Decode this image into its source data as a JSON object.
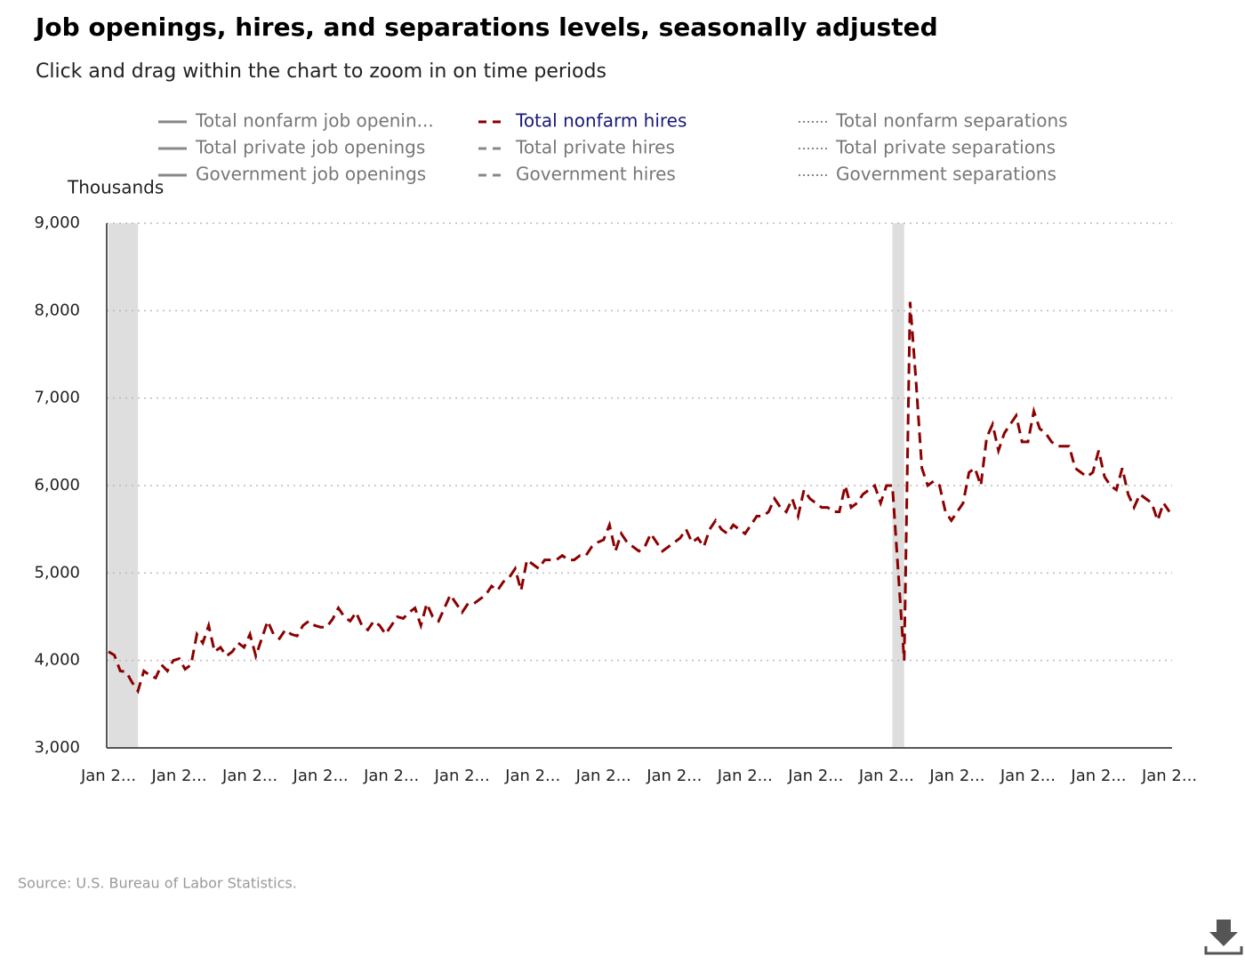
{
  "chart_data": {
    "type": "line",
    "title": "Job openings, hires, and separations levels, seasonally adjusted",
    "subtitle": "Click and drag within the chart to zoom in on time periods",
    "y_label": "Thousands",
    "source": "Source: U.S. Bureau of Labor Statistics.",
    "ylim": [
      3000,
      9000
    ],
    "yticks": [
      {
        "value": 3000,
        "label": "3,000"
      },
      {
        "value": 4000,
        "label": "4,000"
      },
      {
        "value": 5000,
        "label": "5,000"
      },
      {
        "value": 6000,
        "label": "6,000"
      },
      {
        "value": 7000,
        "label": "7,000"
      },
      {
        "value": 8000,
        "label": "8,000"
      },
      {
        "value": 9000,
        "label": "9,000"
      }
    ],
    "grid": true,
    "shaded_ranges": [
      [
        0,
        5
      ],
      [
        133,
        135
      ]
    ],
    "categories": [
      "Jan 2...",
      null,
      null,
      null,
      null,
      null,
      null,
      null,
      null,
      null,
      null,
      null,
      "Jan 2...",
      null,
      null,
      null,
      null,
      null,
      null,
      null,
      null,
      null,
      null,
      null,
      "Jan 2...",
      null,
      null,
      null,
      null,
      null,
      null,
      null,
      null,
      null,
      null,
      null,
      "Jan 2...",
      null,
      null,
      null,
      null,
      null,
      null,
      null,
      null,
      null,
      null,
      null,
      "Jan 2...",
      null,
      null,
      null,
      null,
      null,
      null,
      null,
      null,
      null,
      null,
      null,
      "Jan 2...",
      null,
      null,
      null,
      null,
      null,
      null,
      null,
      null,
      null,
      null,
      null,
      "Jan 2...",
      null,
      null,
      null,
      null,
      null,
      null,
      null,
      null,
      null,
      null,
      null,
      "Jan 2...",
      null,
      null,
      null,
      null,
      null,
      null,
      null,
      null,
      null,
      null,
      null,
      "Jan 2...",
      null,
      null,
      null,
      null,
      null,
      null,
      null,
      null,
      null,
      null,
      null,
      "Jan 2...",
      null,
      null,
      null,
      null,
      null,
      null,
      null,
      null,
      null,
      null,
      null,
      "Jan 2...",
      null,
      null,
      null,
      null,
      null,
      null,
      null,
      null,
      null,
      null,
      null,
      "Jan 2...",
      null,
      null,
      null,
      null,
      null,
      null,
      null,
      null,
      null,
      null,
      null,
      "Jan 2...",
      null,
      null,
      null,
      null,
      null,
      null,
      null,
      null,
      null,
      null,
      null,
      "Jan 2...",
      null,
      null,
      null,
      null,
      null,
      null,
      null,
      null,
      null,
      null,
      null,
      "Jan 2...",
      null,
      null,
      null,
      null,
      null,
      null,
      null,
      null,
      null,
      null,
      null,
      "Jan 2..."
    ],
    "series": [
      {
        "name": "Total nonfarm job openin...",
        "color": "#888888",
        "dash": "solid",
        "visible": false
      },
      {
        "name": "Total nonfarm hires",
        "color": "#8b0000",
        "dash": "dashed",
        "visible": true,
        "values": [
          4100,
          4060,
          3880,
          3870,
          3750,
          3650,
          3880,
          3830,
          3800,
          3950,
          3880,
          4000,
          4020,
          3900,
          3950,
          4300,
          4200,
          4400,
          4100,
          4150,
          4050,
          4100,
          4200,
          4150,
          4300,
          4050,
          4250,
          4450,
          4300,
          4250,
          4350,
          4300,
          4280,
          4400,
          4450,
          4400,
          4380,
          4380,
          4470,
          4600,
          4500,
          4450,
          4550,
          4400,
          4350,
          4450,
          4400,
          4300,
          4400,
          4500,
          4480,
          4550,
          4600,
          4400,
          4650,
          4500,
          4450,
          4600,
          4750,
          4650,
          4550,
          4650,
          4650,
          4700,
          4750,
          4850,
          4800,
          4900,
          4950,
          5050,
          4800,
          5150,
          5100,
          5050,
          5150,
          5150,
          5150,
          5200,
          5150,
          5150,
          5200,
          5200,
          5300,
          5350,
          5380,
          5550,
          5250,
          5450,
          5350,
          5300,
          5250,
          5300,
          5450,
          5350,
          5250,
          5300,
          5350,
          5400,
          5500,
          5350,
          5400,
          5300,
          5500,
          5600,
          5500,
          5450,
          5550,
          5500,
          5450,
          5550,
          5650,
          5650,
          5700,
          5850,
          5750,
          5700,
          5850,
          5650,
          5950,
          5850,
          5800,
          5750,
          5750,
          5700,
          5700,
          6000,
          5750,
          5800,
          5900,
          5950,
          6000,
          5800,
          6000,
          6000,
          5000,
          4000,
          8100,
          7200,
          6200,
          6000,
          6050,
          6000,
          5700,
          5600,
          5700,
          5800,
          6150,
          6200,
          6000,
          6550,
          6700,
          6400,
          6600,
          6700,
          6800,
          6500,
          6500,
          6850,
          6650,
          6600,
          6500,
          6450,
          6450,
          6450,
          6200,
          6150,
          6100,
          6150,
          6400,
          6100,
          6000,
          5950,
          6200,
          5900,
          5750,
          5900,
          5850,
          5800,
          5600,
          5800,
          5700
        ]
      },
      {
        "name": "Total nonfarm separations",
        "color": "#888888",
        "dash": "dotted",
        "visible": false
      },
      {
        "name": "Total private job openings",
        "color": "#888888",
        "dash": "solid",
        "visible": false
      },
      {
        "name": "Total private hires",
        "color": "#888888",
        "dash": "dashed",
        "visible": false
      },
      {
        "name": "Total private separations",
        "color": "#888888",
        "dash": "dotted",
        "visible": false
      },
      {
        "name": "Government job openings",
        "color": "#888888",
        "dash": "solid",
        "visible": false
      },
      {
        "name": "Government hires",
        "color": "#888888",
        "dash": "dashed",
        "visible": false
      },
      {
        "name": "Government separations",
        "color": "#888888",
        "dash": "dotted",
        "visible": false
      }
    ]
  }
}
